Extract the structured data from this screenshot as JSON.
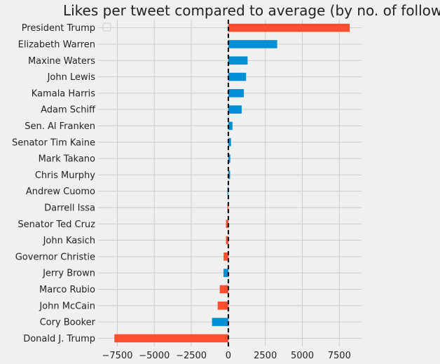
{
  "chart_data": {
    "type": "bar",
    "orientation": "horizontal",
    "title": "Likes per tweet compared to average (by no. of followers)",
    "xlabel": "",
    "ylabel": "",
    "xlim": [
      -8800,
      9000
    ],
    "xticks": [
      -7500,
      -5000,
      -2500,
      0,
      2500,
      5000,
      7500
    ],
    "xtick_labels": [
      "−7500",
      "−5000",
      "−2500",
      "0",
      "2500",
      "5000",
      "7500"
    ],
    "grid": true,
    "reference_line": {
      "x": 0,
      "style": "dashed",
      "color": "#000000"
    },
    "colors": {
      "positive_group": "#008fd5",
      "negative_group": "#fc4f30"
    },
    "categories": [
      "President Trump",
      "Elizabeth Warren",
      "Maxine Waters",
      "John Lewis",
      "Kamala Harris",
      "Adam Schiff",
      "Sen. Al Franken",
      "Senator Tim Kaine",
      "Mark Takano",
      "Chris Murphy",
      "Andrew Cuomo",
      "Darrell Issa",
      "Senator Ted Cruz",
      "John Kasich",
      "Governor Christie",
      "Jerry Brown",
      "Marco Rubio",
      "John McCain",
      "Cory Booker",
      "Donald J. Trump"
    ],
    "values": [
      8200,
      3300,
      1300,
      1200,
      1050,
      900,
      280,
      180,
      130,
      120,
      -60,
      -60,
      -160,
      -160,
      -320,
      -330,
      -580,
      -720,
      -1100,
      -7700
    ],
    "bar_colors": [
      "#fc4f30",
      "#008fd5",
      "#008fd5",
      "#008fd5",
      "#008fd5",
      "#008fd5",
      "#008fd5",
      "#008fd5",
      "#008fd5",
      "#008fd5",
      "#008fd5",
      "#fc4f30",
      "#fc4f30",
      "#fc4f30",
      "#fc4f30",
      "#008fd5",
      "#fc4f30",
      "#fc4f30",
      "#008fd5",
      "#fc4f30"
    ],
    "legend": {
      "visible": true,
      "entries": [],
      "placement": "top-left"
    }
  }
}
